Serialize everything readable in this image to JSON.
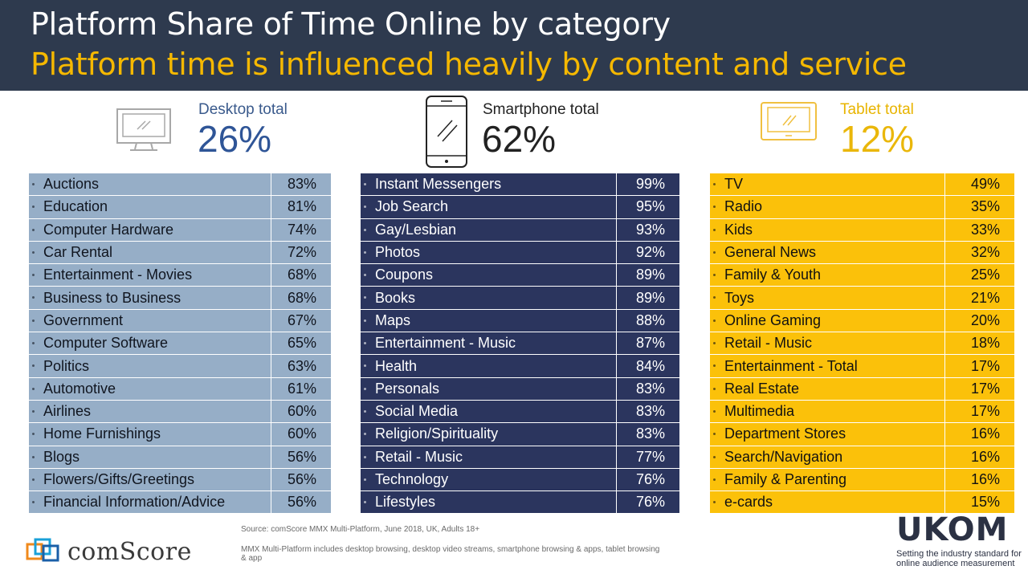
{
  "header": {
    "title": "Platform Share of Time Online by category",
    "subtitle": "Platform time is influenced heavily by content and service"
  },
  "colors": {
    "header_bg": "#2e3a4e",
    "subtitle": "#f5b800",
    "desktop": "#96aec7",
    "smartphone": "#2b355e",
    "tablet": "#fbc10a"
  },
  "desktop": {
    "icon": "desktop-monitor-icon",
    "label": "Desktop total",
    "total": "26%",
    "rows": [
      {
        "name": "Auctions",
        "value": "83%"
      },
      {
        "name": "Education",
        "value": "81%"
      },
      {
        "name": "Computer Hardware",
        "value": "74%"
      },
      {
        "name": "Car Rental",
        "value": "72%"
      },
      {
        "name": "Entertainment - Movies",
        "value": "68%"
      },
      {
        "name": "Business to Business",
        "value": "68%"
      },
      {
        "name": "Government",
        "value": "67%"
      },
      {
        "name": "Computer Software",
        "value": "65%"
      },
      {
        "name": "Politics",
        "value": "63%"
      },
      {
        "name": "Automotive",
        "value": "61%"
      },
      {
        "name": "Airlines",
        "value": "60%"
      },
      {
        "name": "Home Furnishings",
        "value": "60%"
      },
      {
        "name": "Blogs",
        "value": "56%"
      },
      {
        "name": "Flowers/Gifts/Greetings",
        "value": "56%"
      },
      {
        "name": "Financial Information/Advice",
        "value": "56%"
      }
    ]
  },
  "smartphone": {
    "icon": "smartphone-icon",
    "label": "Smartphone  total",
    "total": "62%",
    "rows": [
      {
        "name": "Instant Messengers",
        "value": "99%"
      },
      {
        "name": "Job Search",
        "value": "95%"
      },
      {
        "name": "Gay/Lesbian",
        "value": "93%"
      },
      {
        "name": "Photos",
        "value": "92%"
      },
      {
        "name": "Coupons",
        "value": "89%"
      },
      {
        "name": "Books",
        "value": "89%"
      },
      {
        "name": "Maps",
        "value": "88%"
      },
      {
        "name": "Entertainment - Music",
        "value": "87%"
      },
      {
        "name": "Health",
        "value": "84%"
      },
      {
        "name": "Personals",
        "value": "83%"
      },
      {
        "name": "Social Media",
        "value": "83%"
      },
      {
        "name": "Religion/Spirituality",
        "value": "83%"
      },
      {
        "name": "Retail - Music",
        "value": "77%"
      },
      {
        "name": "Technology",
        "value": "76%"
      },
      {
        "name": "Lifestyles",
        "value": "76%"
      }
    ]
  },
  "tablet": {
    "icon": "tablet-icon",
    "label": "Tablet total",
    "total": "12%",
    "rows": [
      {
        "name": "TV",
        "value": "49%"
      },
      {
        "name": "Radio",
        "value": "35%"
      },
      {
        "name": "Kids",
        "value": "33%"
      },
      {
        "name": "General News",
        "value": "32%"
      },
      {
        "name": "Family & Youth",
        "value": "25%"
      },
      {
        "name": "Toys",
        "value": "21%"
      },
      {
        "name": "Online Gaming",
        "value": "20%"
      },
      {
        "name": "Retail - Music",
        "value": "18%"
      },
      {
        "name": "Entertainment - Total",
        "value": "17%"
      },
      {
        "name": "Real Estate",
        "value": "17%"
      },
      {
        "name": "Multimedia",
        "value": "17%"
      },
      {
        "name": "Department Stores",
        "value": "16%"
      },
      {
        "name": "Search/Navigation",
        "value": "16%"
      },
      {
        "name": "Family & Parenting",
        "value": "16%"
      },
      {
        "name": "e-cards",
        "value": "15%"
      }
    ]
  },
  "footer": {
    "source": "Source: comScore MMX Multi-Platform,  June 2018, UK,  Adults 18+",
    "note": "MMX Multi-Platform  includes desktop browsing, desktop video streams, smartphone browsing & apps, tablet browsing & app",
    "comscore_logo": "comScore",
    "ukom_logo": "UKOM",
    "ukom_tagline": "Setting the industry standard for online audience measurement"
  }
}
